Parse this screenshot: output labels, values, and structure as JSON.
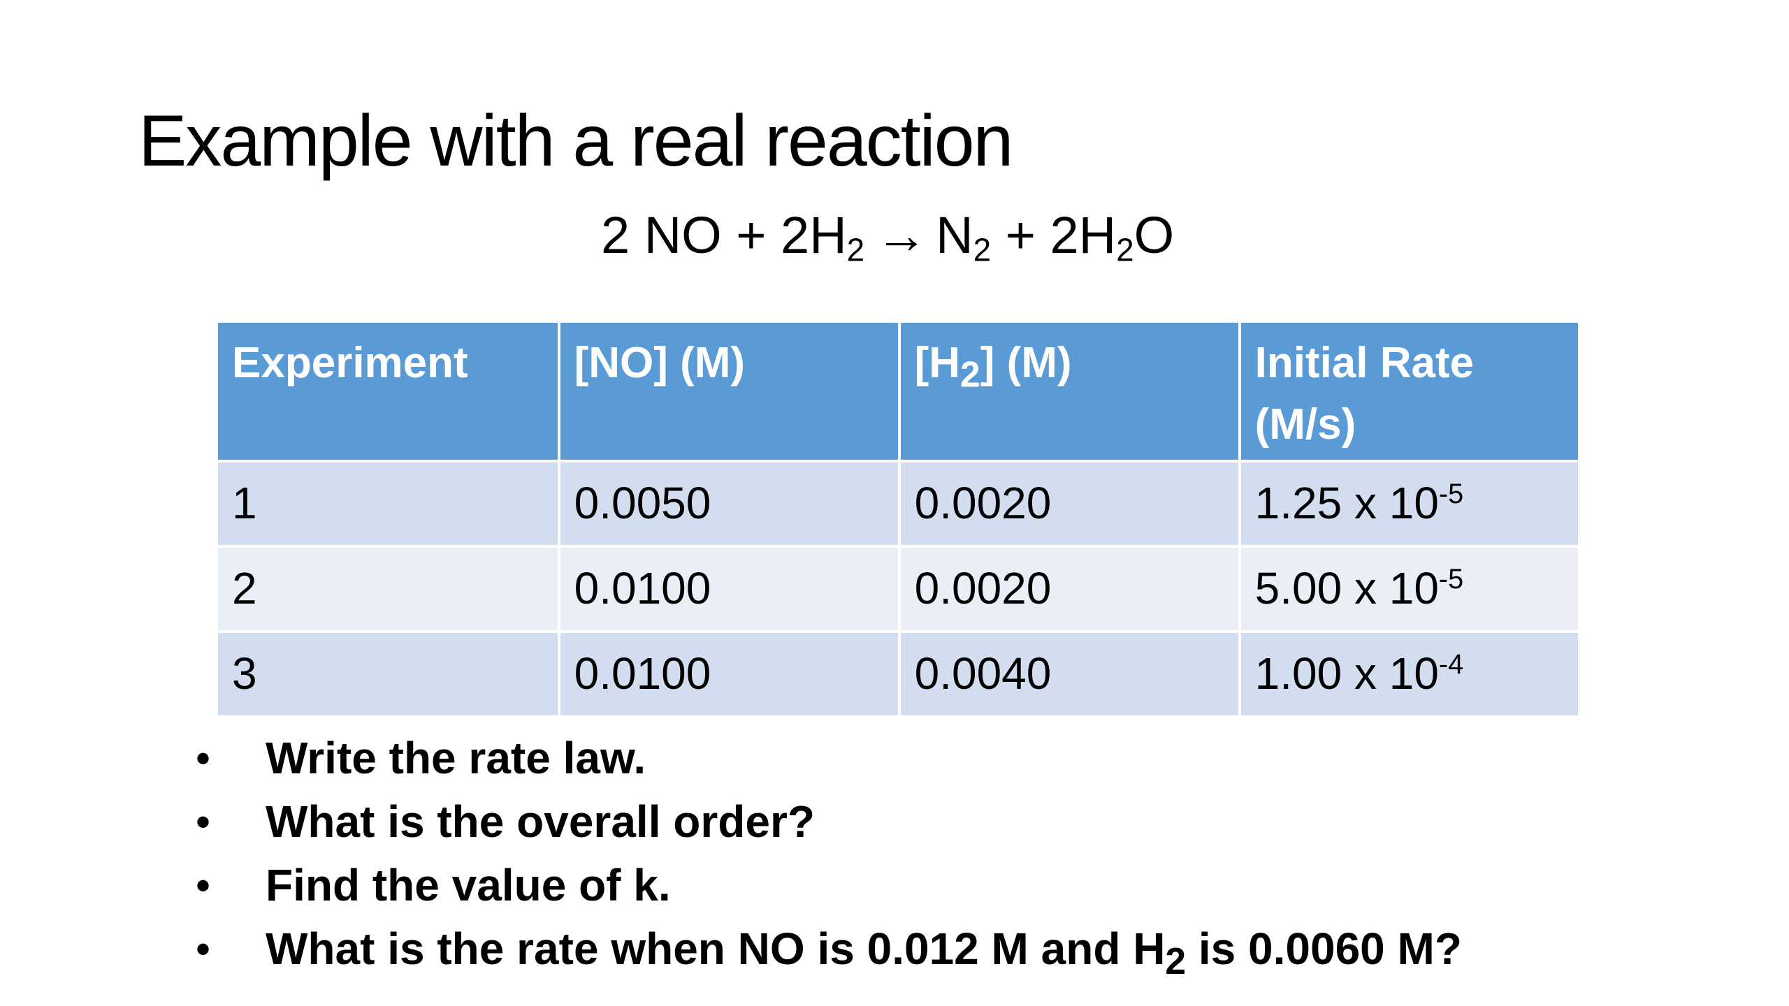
{
  "slide": {
    "title": "Example with a real reaction",
    "equation": {
      "part1": "2 NO + 2H",
      "sub1": "2",
      "arrow": "→",
      "part2": "N",
      "sub2": "2",
      "part3": " + 2H",
      "sub3": "2",
      "part4": "O"
    }
  },
  "table": {
    "headers": {
      "experiment": "Experiment",
      "no": "[NO] (M)",
      "h2_pre": "[H",
      "h2_sub": "2",
      "h2_post": "] (M)",
      "rate_line1": "Initial Rate",
      "rate_line2": "(M/s)"
    },
    "rows": [
      {
        "experiment": "1",
        "no": "0.0050",
        "h2": "0.0020",
        "rate_base": "1.25 x 10",
        "rate_exp": "-5"
      },
      {
        "experiment": "2",
        "no": "0.0100",
        "h2": "0.0020",
        "rate_base": "5.00 x 10",
        "rate_exp": "-5"
      },
      {
        "experiment": "3",
        "no": "0.0100",
        "h2": "0.0040",
        "rate_base": "1.00 x 10",
        "rate_exp": "-4"
      }
    ]
  },
  "questions": {
    "q1": "Write the rate law.",
    "q2": "What is the overall order?",
    "q3": "Find the value of k.",
    "q4_pre": "What is the rate when NO is 0.012 M and H",
    "q4_sub": "2",
    "q4_post": " is 0.0060 M?"
  }
}
